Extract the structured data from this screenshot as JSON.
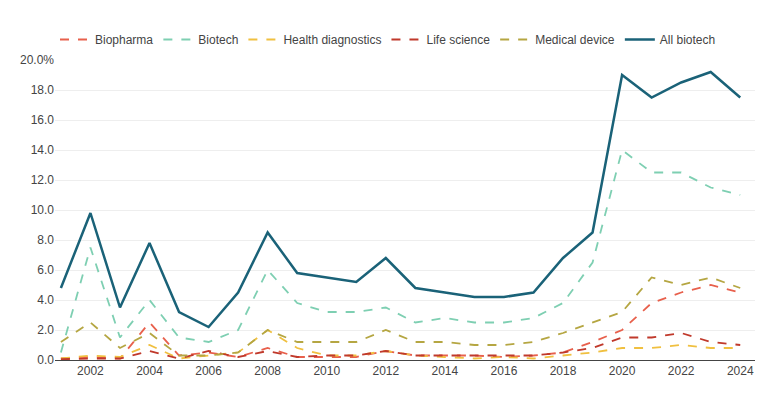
{
  "chart_data": {
    "type": "line",
    "x": [
      2001,
      2002,
      2003,
      2004,
      2005,
      2006,
      2007,
      2008,
      2009,
      2010,
      2011,
      2012,
      2013,
      2014,
      2015,
      2016,
      2017,
      2018,
      2019,
      2020,
      2021,
      2022,
      2023,
      2024
    ],
    "series": [
      {
        "name": "Biopharma",
        "color": "#e8604c",
        "line_style": "dashed",
        "values": [
          0.1,
          0.2,
          0.1,
          2.5,
          0.3,
          0.5,
          0.2,
          0.8,
          0.2,
          0.2,
          0.2,
          0.6,
          0.3,
          0.3,
          0.3,
          0.2,
          0.3,
          0.5,
          1.2,
          2.0,
          3.8,
          4.5,
          5.0,
          4.5
        ]
      },
      {
        "name": "Biotech",
        "color": "#7ecfb2",
        "line_style": "dashed",
        "values": [
          0.5,
          7.5,
          1.5,
          4.0,
          1.5,
          1.2,
          2.0,
          6.0,
          3.8,
          3.2,
          3.2,
          3.5,
          2.5,
          2.8,
          2.5,
          2.5,
          2.8,
          3.8,
          6.5,
          14.0,
          12.5,
          12.5,
          11.5,
          11.0
        ]
      },
      {
        "name": "Health diagnostics",
        "color": "#f0c040",
        "line_style": "dashed",
        "values": [
          0.1,
          0.3,
          0.2,
          1.0,
          0.1,
          0.3,
          0.5,
          2.0,
          0.8,
          0.3,
          0.3,
          0.6,
          0.3,
          0.2,
          0.1,
          0.2,
          0.1,
          0.3,
          0.5,
          0.8,
          0.8,
          1.0,
          0.8,
          0.8
        ]
      },
      {
        "name": "Life science",
        "color": "#c0392b",
        "line_style": "dashed",
        "values": [
          0.05,
          0.1,
          0.1,
          0.6,
          0.1,
          0.6,
          0.2,
          0.6,
          0.2,
          0.3,
          0.3,
          0.6,
          0.3,
          0.3,
          0.3,
          0.3,
          0.3,
          0.5,
          0.8,
          1.5,
          1.5,
          1.8,
          1.2,
          1.0
        ]
      },
      {
        "name": "Medical device",
        "color": "#b5a642",
        "line_style": "dashed",
        "values": [
          1.2,
          2.5,
          0.8,
          1.8,
          0.3,
          0.3,
          0.5,
          2.0,
          1.2,
          1.2,
          1.2,
          2.0,
          1.2,
          1.2,
          1.0,
          1.0,
          1.2,
          1.8,
          2.5,
          3.2,
          5.5,
          5.0,
          5.5,
          4.8
        ]
      },
      {
        "name": "All biotech",
        "color": "#1a6278",
        "line_style": "solid",
        "values": [
          4.8,
          9.8,
          3.5,
          7.8,
          3.2,
          2.2,
          4.5,
          8.5,
          5.8,
          5.5,
          5.2,
          6.8,
          4.8,
          4.5,
          4.2,
          4.2,
          4.5,
          6.8,
          8.5,
          19.0,
          17.5,
          18.5,
          19.2,
          17.5
        ]
      }
    ],
    "xlim": [
      2000.8,
      2024.5
    ],
    "xticks": [
      2002,
      2004,
      2006,
      2008,
      2010,
      2012,
      2014,
      2016,
      2018,
      2020,
      2022,
      2024
    ],
    "ylim": [
      0.0,
      20.0
    ],
    "yticks": [
      {
        "value": 0.0,
        "label": "0.0"
      },
      {
        "value": 2.0,
        "label": "2.0"
      },
      {
        "value": 4.0,
        "label": "4.0"
      },
      {
        "value": 6.0,
        "label": "6.0"
      },
      {
        "value": 8.0,
        "label": "8.0"
      },
      {
        "value": 10.0,
        "label": "10.0"
      },
      {
        "value": 12.0,
        "label": "12.0"
      },
      {
        "value": 14.0,
        "label": "14.0"
      },
      {
        "value": 16.0,
        "label": "16.0"
      },
      {
        "value": 18.0,
        "label": "18.0"
      },
      {
        "value": 20.0,
        "label": "20.0%"
      }
    ],
    "grid": "y",
    "legend": "top"
  }
}
